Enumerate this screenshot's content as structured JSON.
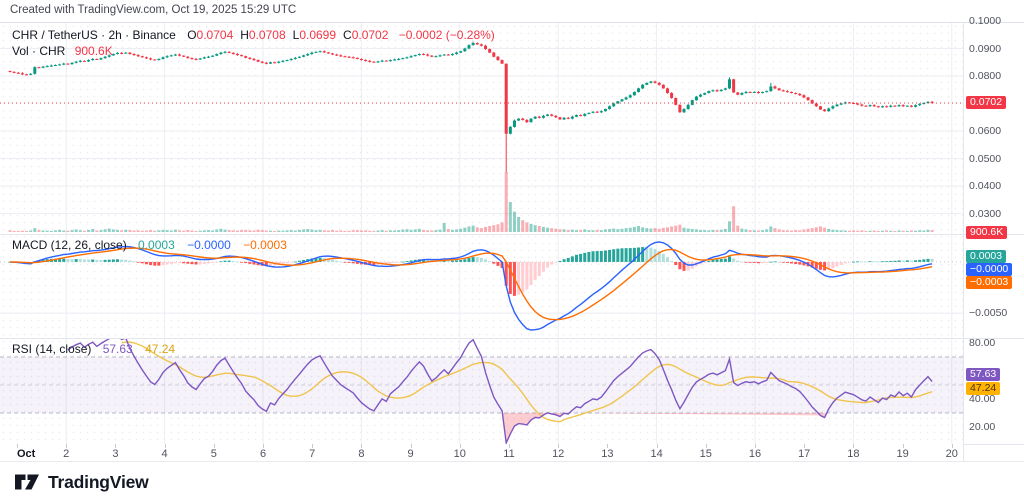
{
  "attribution": "Created with TradingView.com, Oct 19, 2025 15:29 UTC",
  "footer": {
    "brand": "TradingView"
  },
  "colors": {
    "up": "#089981",
    "down": "#f23645",
    "vol_up": "rgba(8,153,129,0.45)",
    "vol_down": "rgba(242,54,69,0.40)",
    "grid": "#eceef3",
    "axis_text": "#50535e",
    "price_line": "#f23645",
    "macd_line": "#2962ff",
    "macd_signal": "#ff6d00",
    "hist_pos_rise": "#26a69a",
    "hist_pos_fall": "#b2dfdb",
    "hist_neg_fall": "#ff5252",
    "hist_neg_rise": "#ffcdd2",
    "rsi_line": "#7e57c2",
    "rsi_ma_line": "#f0c44c",
    "rsi_badge": "#7e57c2",
    "rsi_ma_badge": "#ffb300",
    "band_fill": "rgba(126,87,194,0.08)",
    "band_edge": "#b7b9c6",
    "oversold_fill": "rgba(242,54,69,0.25)"
  },
  "chart_data": [
    {
      "type": "candlestick",
      "legend": {
        "symbol": "CHR / TetherUS · 2h · Binance",
        "ohlc": [
          {
            "k": "O",
            "v": "0.0704"
          },
          {
            "k": "H",
            "v": "0.0708"
          },
          {
            "k": "L",
            "v": "0.0699"
          },
          {
            "k": "C",
            "v": "0.0702"
          }
        ],
        "change": "−0.0002 (−0.28%)",
        "vol_label": "Vol · CHR",
        "vol_value": "900.6K"
      },
      "price_badge": "0.0702",
      "volume_badge": "900.6K",
      "last_close_1e4": 702,
      "y_axis_ticks": [
        {
          "label": "0.1000",
          "v": 1000
        },
        {
          "label": "0.0900",
          "v": 900
        },
        {
          "label": "0.0800",
          "v": 800
        },
        {
          "label": "0.0600",
          "v": 600
        },
        {
          "label": "0.0500",
          "v": 500
        },
        {
          "label": "0.0400",
          "v": 400
        },
        {
          "label": "0.0300",
          "v": 300
        }
      ],
      "x_axis": {
        "month_label": "Oct",
        "month_day": 1,
        "day_labels": [
          2,
          3,
          4,
          5,
          6,
          7,
          8,
          9,
          10,
          11,
          12,
          13,
          14,
          15,
          16,
          17,
          18,
          19,
          20
        ],
        "grid_days": [
          2,
          4,
          6,
          8,
          10,
          12,
          14,
          16,
          18,
          20
        ]
      },
      "interval_hours": 2,
      "open_first_1e4": 818,
      "closes_1e4": [
        815,
        812,
        810,
        806,
        805,
        808,
        832,
        830,
        834,
        836,
        838,
        840,
        842,
        845,
        843,
        848,
        852,
        855,
        853,
        858,
        862,
        860,
        865,
        870,
        875,
        880,
        884,
        882,
        885,
        880,
        876,
        872,
        868,
        864,
        860,
        858,
        862,
        868,
        872,
        875,
        878,
        874,
        870,
        865,
        862,
        860,
        864,
        868,
        870,
        874,
        880,
        885,
        888,
        884,
        880,
        876,
        872,
        866,
        862,
        858,
        852,
        848,
        845,
        850,
        848,
        852,
        855,
        858,
        862,
        866,
        870,
        875,
        880,
        885,
        888,
        890,
        886,
        882,
        878,
        875,
        872,
        870,
        868,
        866,
        862,
        858,
        855,
        852,
        850,
        853,
        856,
        854,
        858,
        860,
        862,
        865,
        868,
        872,
        876,
        880,
        878,
        874,
        870,
        872,
        875,
        878,
        876,
        880,
        885,
        890,
        900,
        912,
        920,
        915,
        910,
        898,
        885,
        870,
        858,
        845,
        590,
        615,
        638,
        645,
        640,
        632,
        645,
        652,
        648,
        655,
        660,
        655,
        650,
        642,
        648,
        645,
        652,
        658,
        655,
        662,
        666,
        670,
        668,
        672,
        680,
        690,
        700,
        708,
        715,
        722,
        730,
        742,
        755,
        768,
        775,
        780,
        775,
        768,
        755,
        738,
        720,
        695,
        668,
        680,
        695,
        712,
        725,
        732,
        738,
        745,
        748,
        745,
        750,
        755,
        788,
        740,
        732,
        738,
        742,
        740,
        742,
        738,
        742,
        745,
        762,
        755,
        748,
        745,
        742,
        738,
        735,
        730,
        722,
        712,
        700,
        690,
        678,
        672,
        682,
        690,
        696,
        700,
        704,
        702,
        700,
        696,
        692,
        690,
        694,
        690,
        686,
        690,
        688,
        692,
        690,
        694,
        690,
        692,
        688,
        694,
        698,
        702,
        706,
        702
      ],
      "wick_overrides": {
        "112": {
          "high": 925
        },
        "120": {
          "low": 450,
          "high": 845
        },
        "174": {
          "high": 795
        },
        "184": {
          "high": 775
        }
      },
      "volumes_m": [
        0.8,
        0.5,
        0.4,
        0.6,
        0.5,
        0.7,
        1.8,
        0.9,
        0.7,
        0.6,
        0.5,
        0.8,
        1.0,
        0.7,
        0.6,
        0.9,
        1.2,
        0.8,
        0.6,
        1.0,
        1.4,
        0.7,
        0.9,
        1.3,
        1.6,
        1.2,
        1.0,
        0.8,
        1.1,
        0.9,
        0.7,
        0.8,
        0.6,
        0.7,
        0.9,
        0.6,
        0.8,
        1.0,
        0.9,
        0.7,
        1.1,
        0.8,
        0.6,
        0.9,
        0.7,
        0.5,
        0.6,
        0.8,
        0.9,
        0.7,
        1.2,
        1.5,
        1.1,
        0.9,
        0.8,
        0.7,
        0.9,
        1.0,
        0.8,
        0.7,
        1.1,
        0.9,
        0.7,
        0.6,
        0.5,
        0.7,
        0.6,
        0.8,
        0.9,
        0.7,
        1.0,
        1.2,
        1.4,
        1.1,
        0.9,
        1.0,
        0.8,
        0.7,
        0.9,
        0.6,
        0.7,
        0.5,
        0.6,
        0.8,
        0.9,
        0.7,
        0.8,
        0.6,
        0.5,
        0.7,
        0.9,
        0.6,
        0.8,
        0.7,
        0.9,
        1.1,
        1.3,
        1.0,
        1.2,
        1.5,
        0.9,
        0.8,
        0.7,
        0.9,
        1.1,
        4.2,
        1.4,
        1.0,
        1.2,
        1.5,
        2.0,
        2.6,
        3.0,
        2.2,
        1.8,
        2.4,
        2.8,
        3.2,
        3.6,
        4.5,
        28.0,
        14.0,
        9.5,
        7.0,
        5.5,
        4.5,
        3.8,
        3.2,
        2.8,
        2.4,
        2.0,
        1.8,
        1.5,
        1.3,
        1.2,
        1.0,
        1.1,
        0.9,
        1.0,
        1.2,
        0.9,
        0.8,
        1.0,
        0.9,
        1.2,
        1.4,
        1.6,
        1.3,
        1.5,
        1.8,
        2.0,
        2.4,
        2.8,
        2.2,
        1.8,
        1.6,
        1.8,
        1.5,
        1.9,
        2.2,
        2.6,
        3.0,
        3.4,
        2.0,
        1.6,
        1.4,
        1.2,
        1.0,
        0.9,
        0.8,
        1.0,
        0.9,
        1.1,
        1.4,
        5.0,
        12.0,
        3.0,
        1.6,
        1.2,
        0.9,
        0.8,
        0.7,
        0.9,
        1.2,
        2.6,
        1.8,
        1.2,
        0.9,
        0.8,
        0.7,
        0.9,
        0.8,
        1.2,
        1.5,
        1.8,
        2.2,
        2.6,
        2.0,
        1.4,
        1.1,
        0.9,
        0.8,
        0.7,
        0.6,
        0.7,
        0.6,
        0.8,
        0.5,
        0.6,
        0.7,
        0.5,
        0.6,
        0.8,
        0.6,
        0.5,
        0.7,
        0.6,
        0.5,
        0.7,
        0.6,
        0.8,
        0.7,
        1.0,
        0.9
      ]
    },
    {
      "type": "macd",
      "params_label": "MACD (12, 26, close)",
      "fast": 12,
      "slow": 26,
      "source": "close",
      "signal_len": 9,
      "last_values": {
        "histogram": "0.0003",
        "macd": "−0.0000",
        "signal": "−0.0003"
      },
      "axis_tick": "−0.0050",
      "axis_tick_value": -0.005,
      "derived_from": "chart_data.0.closes_1e4"
    },
    {
      "type": "rsi",
      "params_label": "RSI (14, close)",
      "length": 14,
      "ma_length": 14,
      "last_values": {
        "rsi": "57.63",
        "ma": "47.24"
      },
      "last_values_num": {
        "rsi": 57.63,
        "ma": 47.24
      },
      "axis_ticks": [
        {
          "label": "80.00",
          "v": 80
        },
        {
          "label": "40.00",
          "v": 40
        },
        {
          "label": "20.00",
          "v": 20
        }
      ],
      "band": {
        "upper": 70,
        "lower": 30,
        "middle": 50
      }
    }
  ]
}
